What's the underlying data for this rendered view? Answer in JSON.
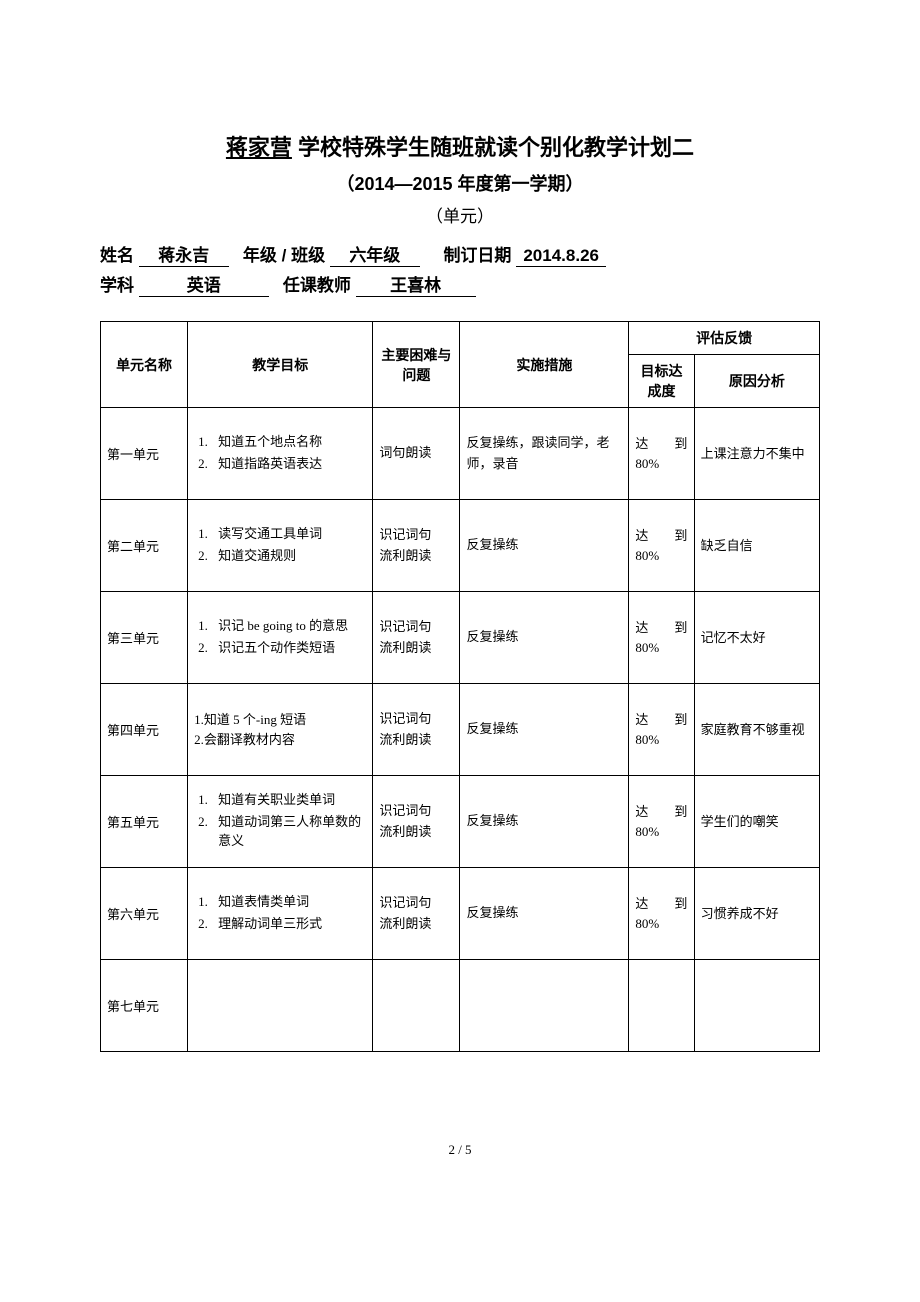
{
  "header": {
    "school": "蒋家营",
    "title_rest": " 学校特殊学生随班就读个别化教学计划二",
    "semester": "（2014—2015 年度第一学期）",
    "unit_label": "（单元）"
  },
  "info": {
    "name_label": "姓名",
    "name_value": "蒋永吉",
    "grade_label": "年级  /  班级",
    "grade_value": "六年级",
    "date_label": "制订日期",
    "date_value": "2014.8.26",
    "subject_label": "学科",
    "subject_value": "英语",
    "teacher_label": "任课教师",
    "teacher_value": "王喜林"
  },
  "table": {
    "headers": {
      "unit": "单元名称",
      "goals": "教学目标",
      "difficulty": "主要困难与问题",
      "implementation": "实施措施",
      "feedback": "评估反馈",
      "achievement": "目标达成度",
      "reason": "原因分析"
    },
    "rows": [
      {
        "unit": "第一单元",
        "goals": [
          {
            "n": "1.",
            "t": "知道五个地点名称"
          },
          {
            "n": "2.",
            "t": "知道指路英语表达"
          }
        ],
        "goals_plain": null,
        "difficulty": "词句朗读",
        "implementation": "反复操练，跟读同学，老师，录音",
        "achievement": "达　　到80%",
        "reason": "上课注意力不集中"
      },
      {
        "unit": "第二单元",
        "goals": [
          {
            "n": "1.",
            "t": "读写交通工具单词"
          },
          {
            "n": "2.",
            "t": "知道交通规则"
          }
        ],
        "goals_plain": null,
        "difficulty": "识记词句\n流利朗读",
        "implementation": "反复操练",
        "achievement": "达　　到80%",
        "reason": "缺乏自信"
      },
      {
        "unit": "第三单元",
        "goals": [
          {
            "n": "1.",
            "t": "识记 be going to  的意思"
          },
          {
            "n": "2.",
            "t": "识记五个动作类短语"
          }
        ],
        "goals_plain": null,
        "difficulty": "识记词句\n流利朗读",
        "implementation": "反复操练",
        "achievement": "达　　到80%",
        "reason": "记忆不太好"
      },
      {
        "unit": "第四单元",
        "goals": null,
        "goals_plain": "1.知道 5 个-ing 短语\n2.会翻译教材内容",
        "difficulty": "识记词句\n流利朗读",
        "implementation": "反复操练",
        "achievement": "达　　到80%",
        "reason": "家庭教育不够重视"
      },
      {
        "unit": "第五单元",
        "goals": [
          {
            "n": "1.",
            "t": "知道有关职业类单词"
          },
          {
            "n": "2.",
            "t": "知道动词第三人称单数的意义"
          }
        ],
        "goals_plain": null,
        "difficulty": "识记词句\n流利朗读",
        "implementation": "反复操练",
        "achievement": "达　　到80%",
        "reason": "学生们的嘲笑"
      },
      {
        "unit": "第六单元",
        "goals": [
          {
            "n": "1.",
            "t": "知道表情类单词"
          },
          {
            "n": "2.",
            "t": "理解动词单三形式"
          }
        ],
        "goals_plain": null,
        "difficulty": "识记词句\n流利朗读",
        "implementation": "反复操练",
        "achievement": "达　　到80%",
        "reason": "习惯养成不好"
      },
      {
        "unit": "第七单元",
        "goals": null,
        "goals_plain": "",
        "difficulty": "",
        "implementation": "",
        "achievement": "",
        "reason": ""
      }
    ]
  },
  "footer": {
    "page": "2  /  5"
  }
}
